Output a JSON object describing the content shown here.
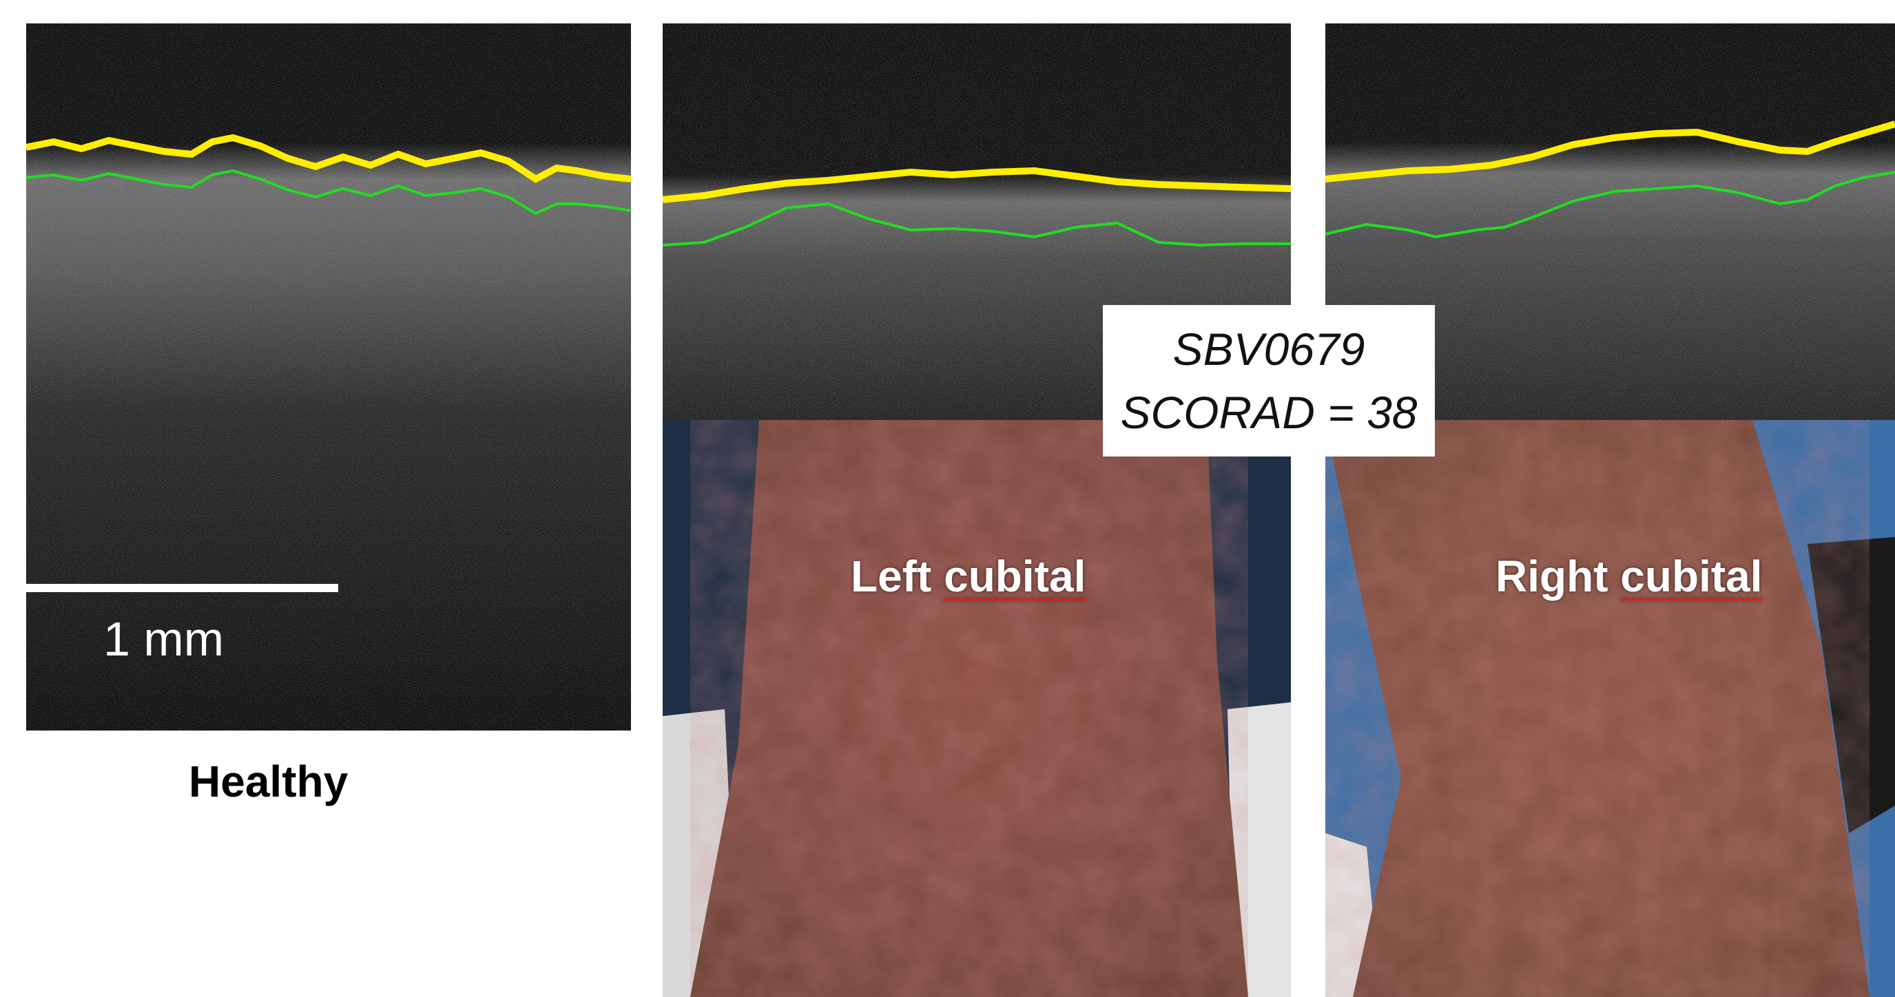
{
  "panels": {
    "healthy": {
      "caption": "Healthy",
      "scale_label": "1 mm"
    },
    "left": {
      "label": "Left cubital"
    },
    "right": {
      "label": "Right cubital"
    }
  },
  "subject": {
    "id": "SBV0679",
    "score": "SCORAD = 38"
  },
  "colors": {
    "upper_boundary": "#ffee00",
    "lower_boundary": "#22dd22",
    "background": "#ffffff"
  }
}
